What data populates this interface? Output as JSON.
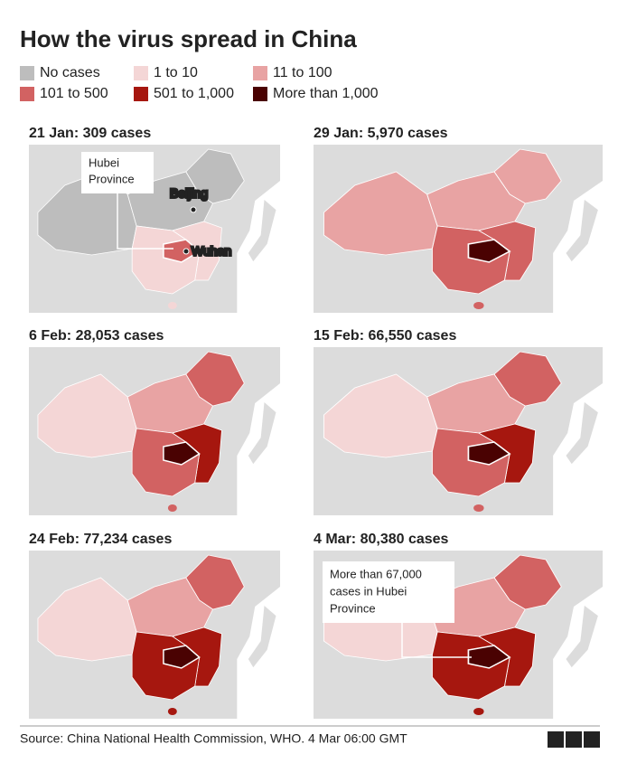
{
  "title": "How the virus spread in China",
  "legend": [
    {
      "label": "No cases",
      "color": "#bdbdbd"
    },
    {
      "label": "1 to 10",
      "color": "#f4d6d6"
    },
    {
      "label": "11 to 100",
      "color": "#e8a3a3"
    },
    {
      "label": "101 to 500",
      "color": "#d26262"
    },
    {
      "label": "501 to 1,000",
      "color": "#a6170f"
    },
    {
      "label": "More than 1,000",
      "color": "#4a0202"
    }
  ],
  "panels": [
    {
      "title": "21 Jan: 309 cases"
    },
    {
      "title": "29 Jan: 5,970 cases"
    },
    {
      "title": "6 Feb: 28,053 cases"
    },
    {
      "title": "15 Feb: 66,550 cases"
    },
    {
      "title": "24 Feb: 77,234 cases"
    },
    {
      "title": "4 Mar: 80,380 cases"
    }
  ],
  "annotations": {
    "hubei": [
      "Hubei",
      "Province"
    ],
    "beijing": "Beijing",
    "wuhan": "Wuhan",
    "hubei_cases": [
      "More than 67,000",
      "cases in Hubei",
      "Province"
    ]
  },
  "source": "Source: China National Health Commission, WHO. 4 Mar 06:00 GMT",
  "logo": [
    "B",
    "B",
    "C"
  ]
}
